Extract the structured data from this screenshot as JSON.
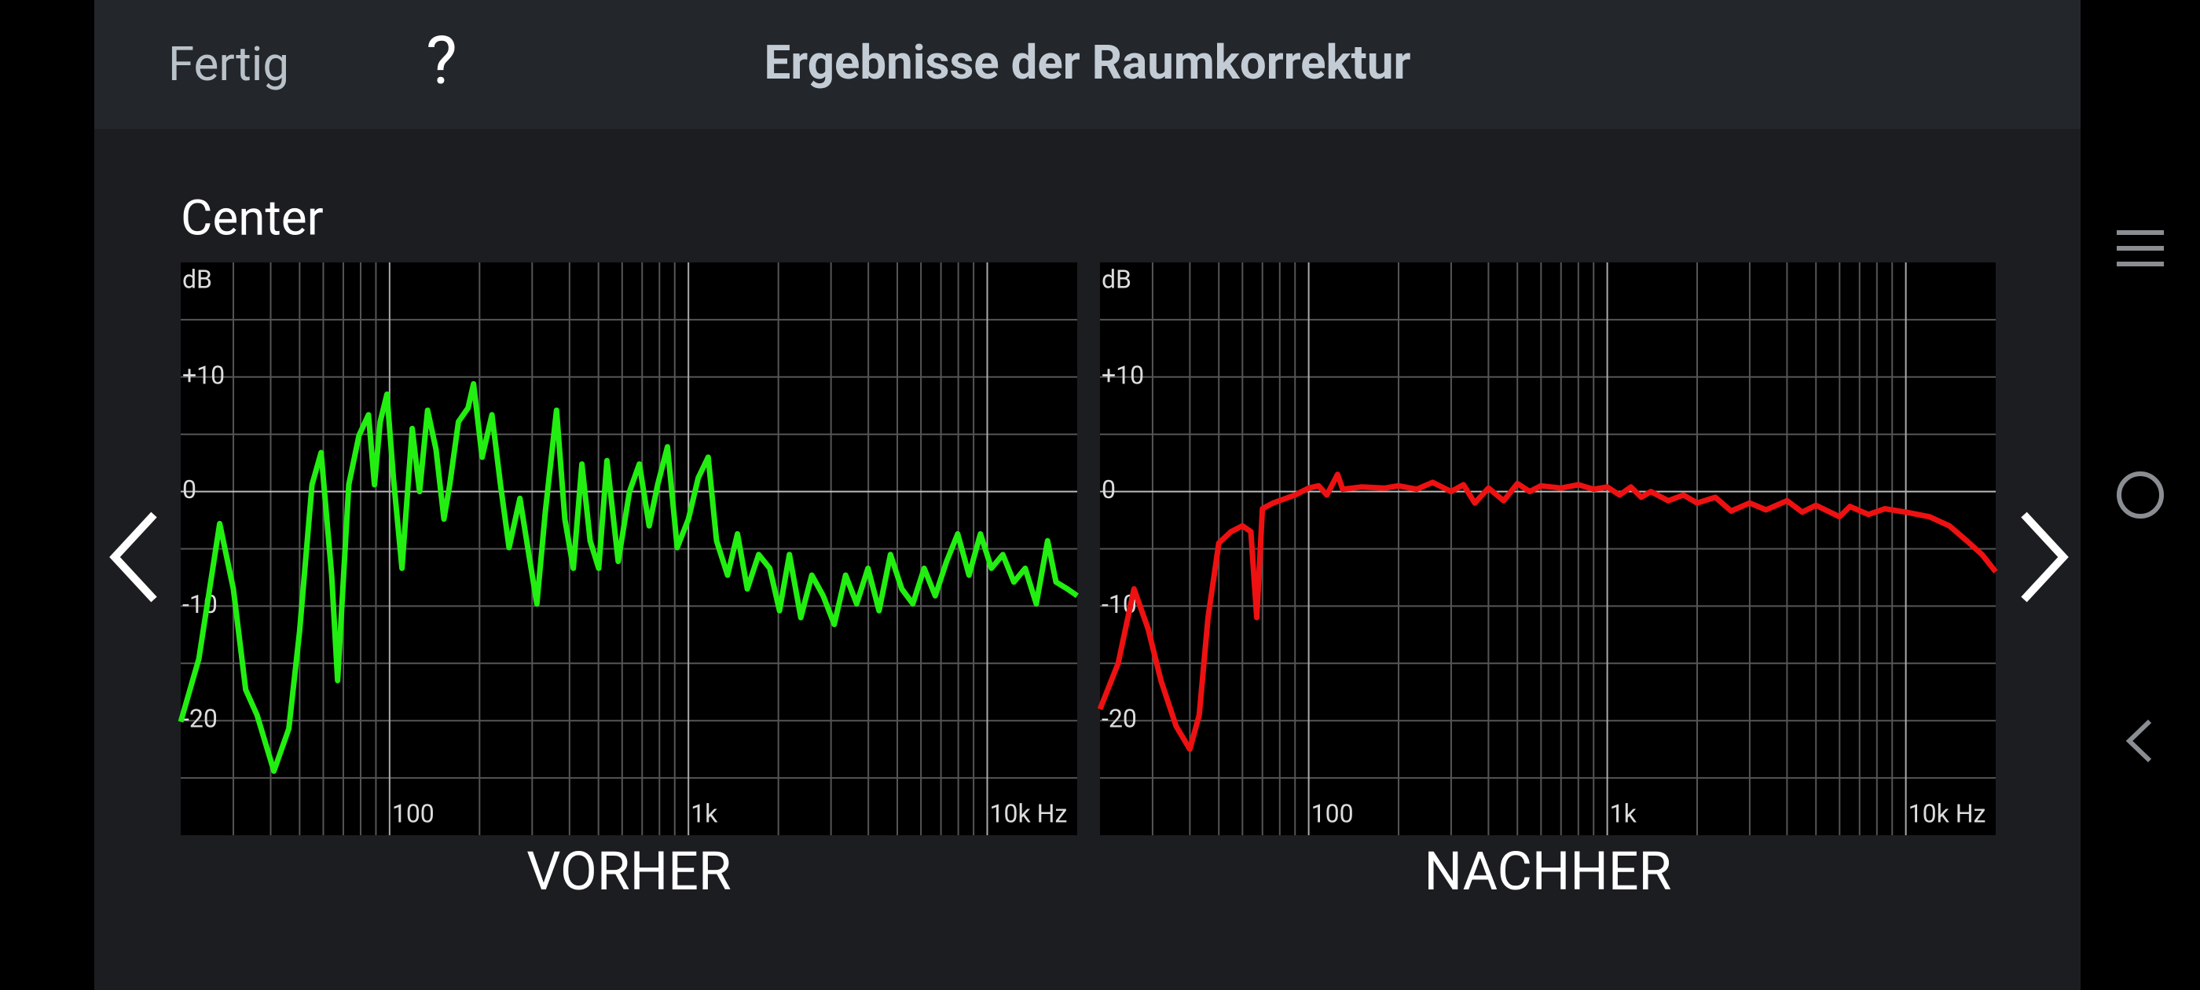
{
  "header": {
    "done": "Fertig",
    "help": "?",
    "title": "Ergebnisse der Raumkorrektur"
  },
  "section": "Center",
  "chart_data": [
    {
      "type": "line",
      "caption": "VORHER",
      "y_label": "dB",
      "color": "#22ee11",
      "log_x": true,
      "grid": true,
      "xlim": [
        20,
        20000
      ],
      "ylim": [
        -30,
        20
      ],
      "xticks": [
        100,
        {
          "value": 1000,
          "label": "1k"
        },
        {
          "value": 10000,
          "label": "10k Hz"
        }
      ],
      "minor_xticks": [
        30,
        40,
        50,
        60,
        70,
        80,
        90,
        200,
        300,
        400,
        500,
        600,
        700,
        800,
        900,
        2000,
        3000,
        4000,
        5000,
        6000,
        7000,
        8000,
        9000
      ],
      "yticks": [
        {
          "value": 10,
          "label": "+10"
        },
        0,
        -10,
        -20
      ],
      "minor_yticks": [
        15,
        5,
        -5,
        -15,
        -25
      ],
      "x": [
        20,
        23,
        27,
        30,
        33,
        36,
        41,
        46,
        50,
        55,
        59,
        64,
        67,
        73,
        79,
        85,
        89,
        93,
        98,
        103,
        110,
        119,
        126,
        134,
        143,
        152,
        159,
        170,
        183,
        191,
        204,
        220,
        235,
        251,
        273,
        295,
        311,
        332,
        362,
        386,
        412,
        440,
        469,
        501,
        534,
        582,
        635,
        685,
        739,
        789,
        851,
        917,
        1000,
        1079,
        1164,
        1242,
        1352,
        1459,
        1574,
        1718,
        1871,
        2018,
        2178,
        2377,
        2588,
        2825,
        3076,
        3357,
        3656,
        3990,
        4345,
        4742,
        5175,
        5636,
        6151,
        6699,
        7311,
        7962,
        8690,
        9484,
        10328,
        11271,
        12274,
        13396,
        14588,
        15922,
        16982,
        18535,
        20000
      ],
      "values": [
        -20.1,
        -14.6,
        -2.8,
        -8.5,
        -17.3,
        -19.5,
        -24.4,
        -20.7,
        -12.2,
        0.6,
        3.4,
        -7.3,
        -16.5,
        0.6,
        4.9,
        6.7,
        0.6,
        6.1,
        8.5,
        1.2,
        -6.7,
        5.5,
        0,
        7.1,
        3.7,
        -2.4,
        0.6,
        6.1,
        7.3,
        9.4,
        3,
        6.7,
        0.6,
        -4.9,
        -0.6,
        -6.1,
        -9.8,
        -1.8,
        7.1,
        -2.4,
        -6.7,
        2.4,
        -4.3,
        -6.7,
        2.7,
        -6.1,
        0,
        2.4,
        -3,
        0.6,
        3.9,
        -4.9,
        -2.4,
        1.2,
        3,
        -4.3,
        -7.3,
        -3.7,
        -8.5,
        -5.5,
        -6.7,
        -10.4,
        -5.5,
        -11,
        -7.3,
        -9.1,
        -11.6,
        -7.3,
        -9.8,
        -6.7,
        -10.4,
        -5.5,
        -8.5,
        -9.8,
        -6.7,
        -9.1,
        -6.1,
        -3.7,
        -7.3,
        -3.7,
        -6.7,
        -5.5,
        -7.9,
        -6.7,
        -9.8,
        -4.3,
        -7.9,
        -8.5,
        -9.1
      ]
    },
    {
      "type": "line",
      "caption": "NACHHER",
      "y_label": "dB",
      "color": "#ee1111",
      "log_x": true,
      "grid": true,
      "xlim": [
        20,
        20000
      ],
      "ylim": [
        -30,
        20
      ],
      "xticks": [
        100,
        {
          "value": 1000,
          "label": "1k"
        },
        {
          "value": 10000,
          "label": "10k Hz"
        }
      ],
      "minor_xticks": [
        30,
        40,
        50,
        60,
        70,
        80,
        90,
        200,
        300,
        400,
        500,
        600,
        700,
        800,
        900,
        2000,
        3000,
        4000,
        5000,
        6000,
        7000,
        8000,
        9000
      ],
      "yticks": [
        {
          "value": 10,
          "label": "+10"
        },
        0,
        -10,
        -20
      ],
      "minor_yticks": [
        15,
        5,
        -5,
        -15,
        -25
      ],
      "x": [
        20,
        23,
        26,
        29,
        32,
        36,
        40,
        43,
        46,
        50,
        55,
        60,
        64,
        67,
        70,
        76,
        90,
        100,
        108,
        115,
        125,
        130,
        150,
        180,
        200,
        230,
        260,
        300,
        330,
        360,
        400,
        450,
        500,
        550,
        600,
        700,
        800,
        900,
        1000,
        1100,
        1200,
        1300,
        1400,
        1600,
        1800,
        2000,
        2300,
        2600,
        3000,
        3400,
        4000,
        4500,
        5000,
        6000,
        6500,
        7500,
        8500,
        10000,
        12000,
        14000,
        16000,
        18000,
        20000
      ],
      "values": [
        -19,
        -15,
        -8.5,
        -12,
        -16.5,
        -20.5,
        -22.5,
        -19.5,
        -11,
        -4.5,
        -3.5,
        -3,
        -3.5,
        -11,
        -1.5,
        -1,
        -0.3,
        0.3,
        0.5,
        -0.3,
        1.5,
        0.2,
        0.4,
        0.3,
        0.5,
        0.2,
        0.8,
        0,
        0.6,
        -1,
        0.3,
        -0.8,
        0.7,
        0,
        0.5,
        0.3,
        0.6,
        0.2,
        0.4,
        -0.3,
        0.4,
        -0.5,
        0,
        -0.8,
        -0.3,
        -1,
        -0.5,
        -1.7,
        -1,
        -1.6,
        -0.8,
        -1.8,
        -1.2,
        -2.2,
        -1.3,
        -2,
        -1.5,
        -1.8,
        -2.2,
        -3,
        -4.3,
        -5.5,
        -7
      ]
    }
  ]
}
